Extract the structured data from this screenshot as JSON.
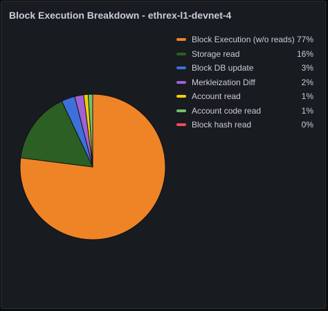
{
  "panel": {
    "title": "Block Execution Breakdown - ethrex-l1-devnet-4"
  },
  "chart_data": {
    "type": "pie",
    "title": "Block Execution Breakdown - ethrex-l1-devnet-4",
    "legend_position": "right",
    "slices": [
      {
        "label": "Block Execution (w/o reads)",
        "value": 77,
        "display": "77%",
        "color": "#ef8427"
      },
      {
        "label": "Storage read",
        "value": 16,
        "display": "16%",
        "color": "#2c5f24"
      },
      {
        "label": "Block DB update",
        "value": 3,
        "display": "3%",
        "color": "#3d71d9"
      },
      {
        "label": "Merkleization Diff",
        "value": 2,
        "display": "2%",
        "color": "#a160d4"
      },
      {
        "label": "Account read",
        "value": 1,
        "display": "1%",
        "color": "#f2cc0c"
      },
      {
        "label": "Account code read",
        "value": 1,
        "display": "1%",
        "color": "#73bf69"
      },
      {
        "label": "Block hash read",
        "value": 0,
        "display": "0%",
        "color": "#f2495c"
      }
    ]
  }
}
